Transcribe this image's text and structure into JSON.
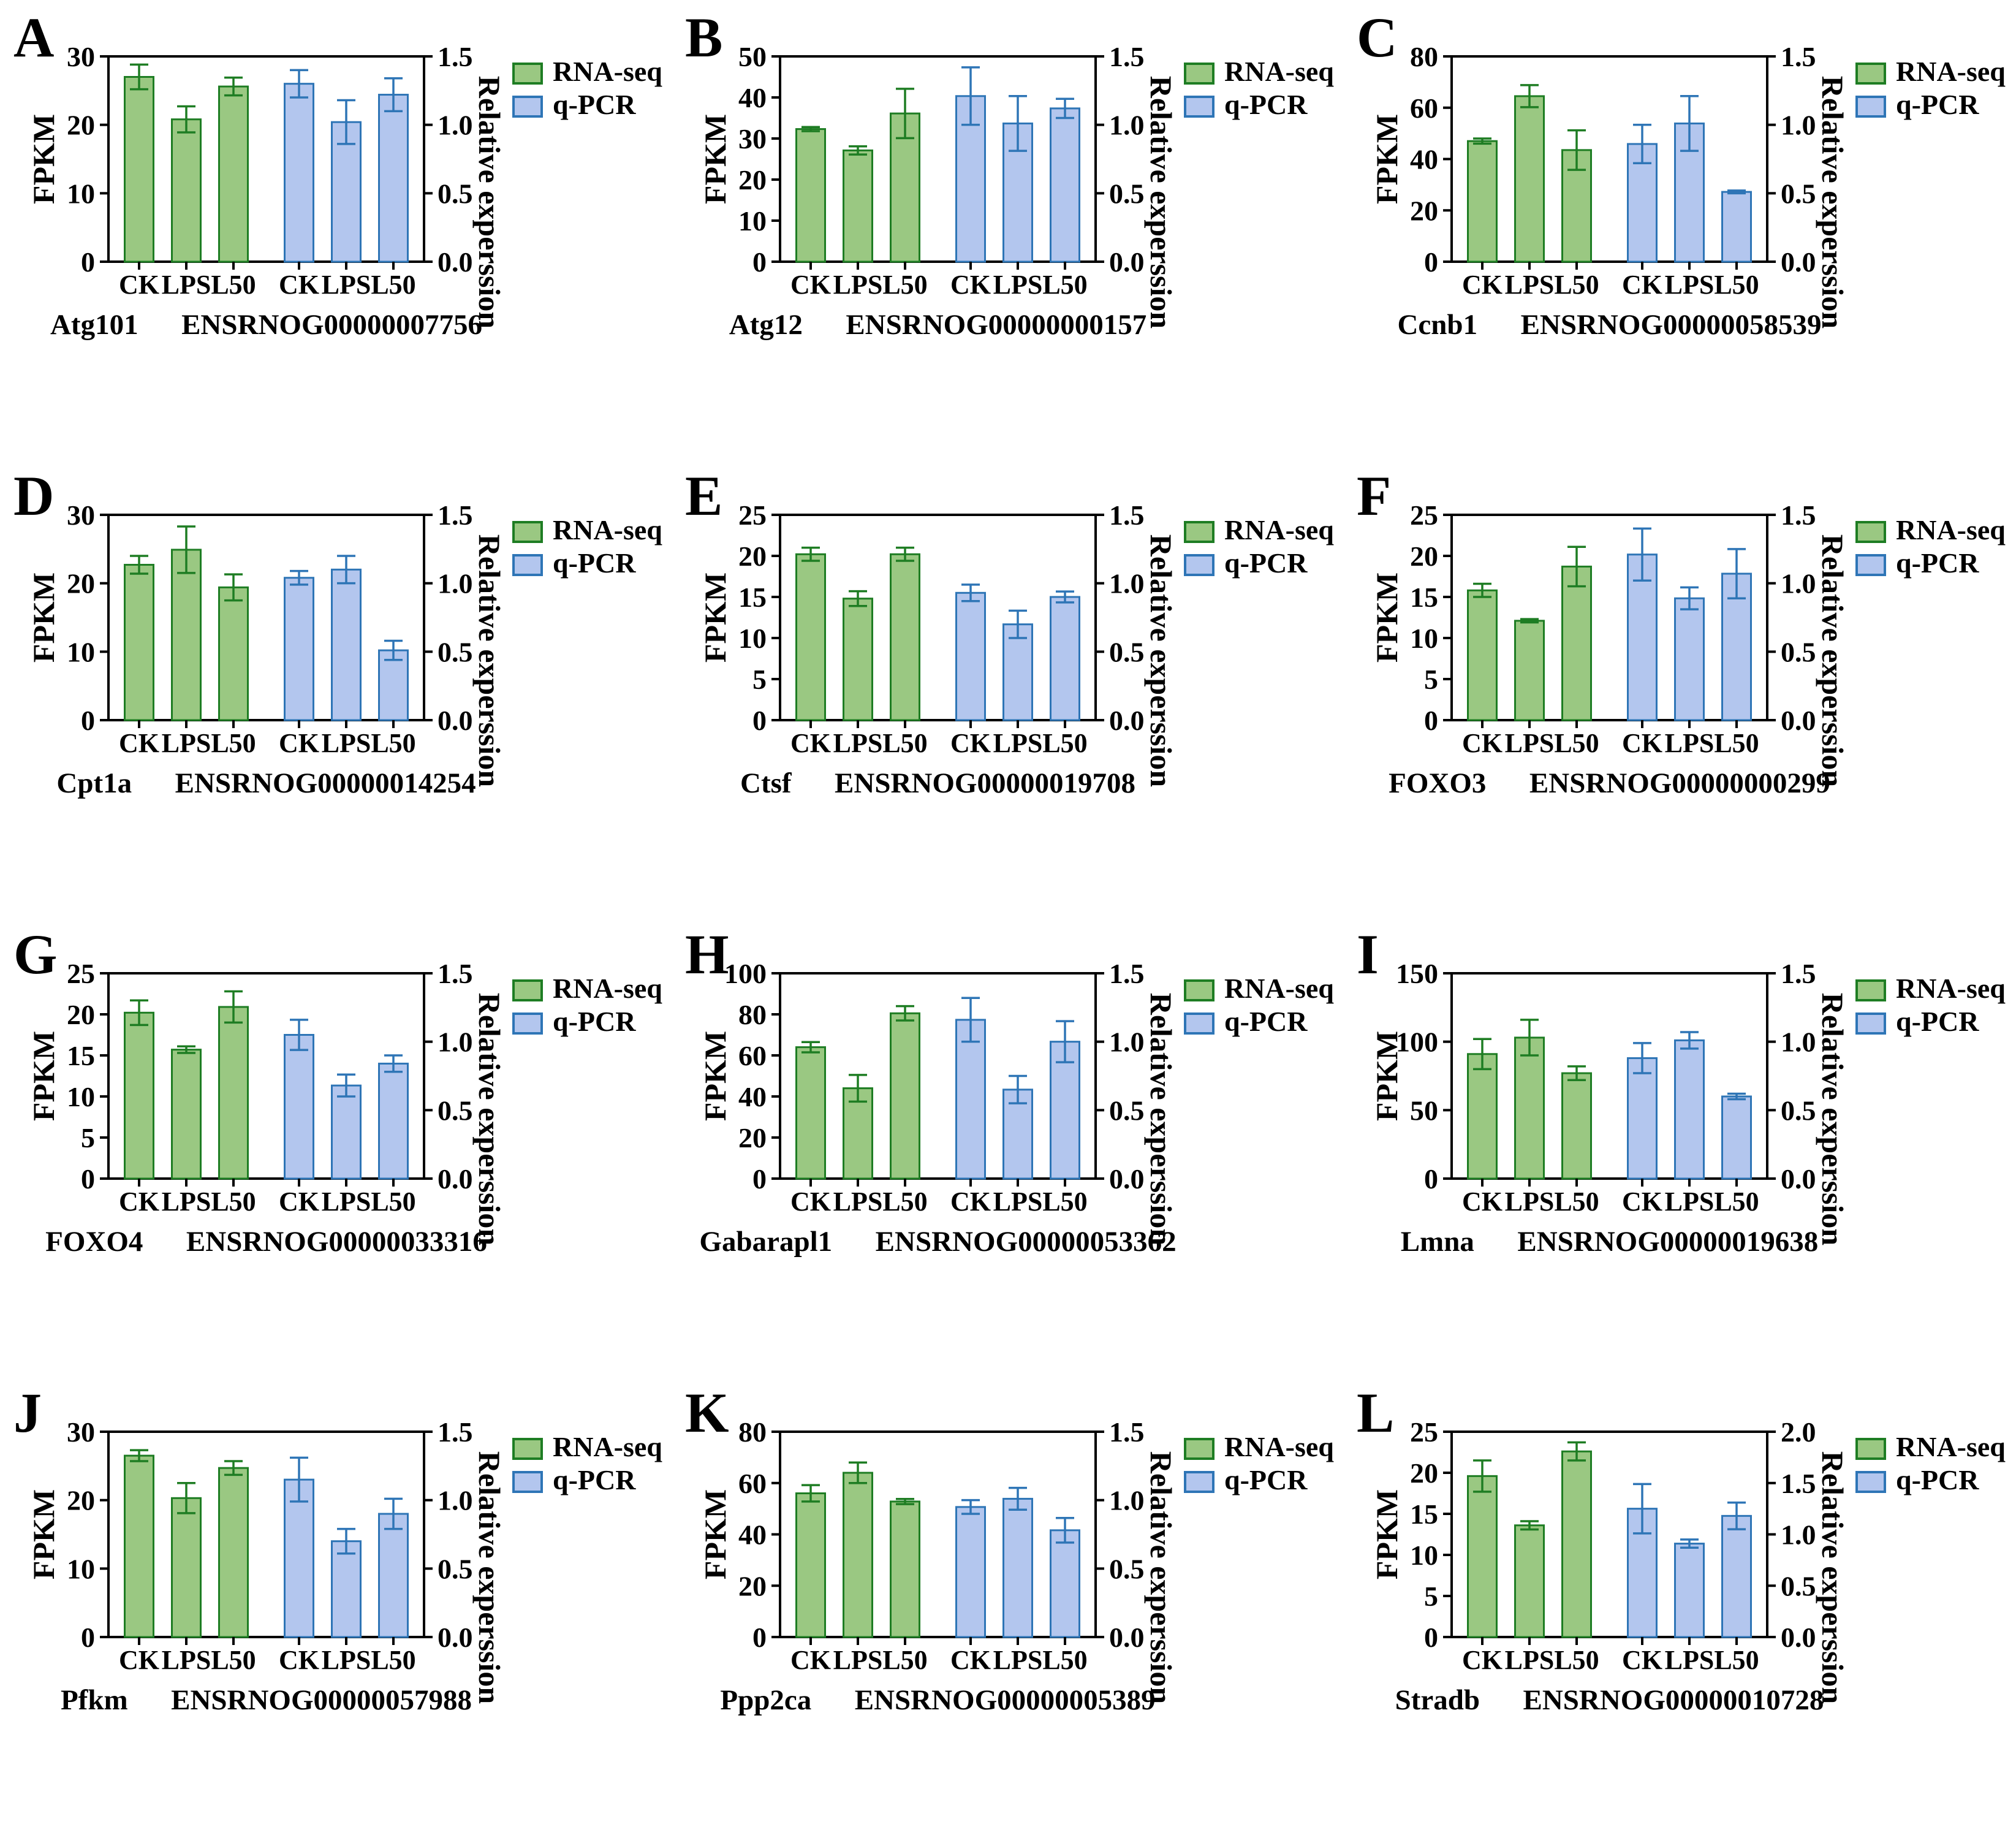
{
  "figure_title": "",
  "legend": {
    "rna_seq_label": "RNA-seq",
    "qpcr_label": "q-PCR"
  },
  "colors": {
    "green_fill": "#9ac882",
    "green_stroke": "#1e7d23",
    "blue_fill": "#b3c6ee",
    "blue_stroke": "#2e75b6",
    "axis": "#000000"
  },
  "chart_data": [
    {
      "type": "bar",
      "letter": "A",
      "gene": "Atg101",
      "gene_id": "ENSRNOG00000007756",
      "categories": [
        "CK",
        "LPS",
        "L50"
      ],
      "left_axis": {
        "label": "FPKM",
        "min": 0,
        "max": 30,
        "ticks": [
          0,
          10,
          20,
          30
        ]
      },
      "right_axis": {
        "label": "Relative experssion",
        "min": 0,
        "max": 1.5,
        "ticks": [
          0,
          0.5,
          1.0,
          1.5
        ]
      },
      "series": [
        {
          "name": "RNA-seq",
          "axis": "left",
          "values": [
            27.0,
            20.8,
            25.6
          ],
          "errors": [
            1.8,
            1.9,
            1.3
          ]
        },
        {
          "name": "q-PCR",
          "axis": "right",
          "values": [
            1.3,
            1.02,
            1.22
          ],
          "errors": [
            0.1,
            0.16,
            0.12
          ]
        }
      ]
    },
    {
      "type": "bar",
      "letter": "B",
      "gene": "Atg12",
      "gene_id": "ENSRNOG00000000157",
      "categories": [
        "CK",
        "LPS",
        "L50"
      ],
      "left_axis": {
        "label": "FPKM",
        "min": 0,
        "max": 50,
        "ticks": [
          0,
          10,
          20,
          30,
          40,
          50
        ]
      },
      "right_axis": {
        "label": "Relative experssion",
        "min": 0,
        "max": 1.5,
        "ticks": [
          0,
          0.5,
          1.0,
          1.5
        ]
      },
      "series": [
        {
          "name": "RNA-seq",
          "axis": "left",
          "values": [
            32.3,
            27.1,
            36.1
          ],
          "errors": [
            0.5,
            1.0,
            6.0
          ]
        },
        {
          "name": "q-PCR",
          "axis": "right",
          "values": [
            1.21,
            1.01,
            1.12
          ],
          "errors": [
            0.21,
            0.2,
            0.07
          ]
        }
      ]
    },
    {
      "type": "bar",
      "letter": "C",
      "gene": "Ccnb1",
      "gene_id": "ENSRNOG00000058539",
      "categories": [
        "CK",
        "LPS",
        "L50"
      ],
      "left_axis": {
        "label": "FPKM",
        "min": 0,
        "max": 80,
        "ticks": [
          0,
          20,
          40,
          60,
          80
        ]
      },
      "right_axis": {
        "label": "Relative experssion",
        "min": 0,
        "max": 1.5,
        "ticks": [
          0,
          0.5,
          1.0,
          1.5
        ]
      },
      "series": [
        {
          "name": "RNA-seq",
          "axis": "left",
          "values": [
            47.0,
            64.5,
            43.5
          ],
          "errors": [
            1.0,
            4.3,
            7.7
          ]
        },
        {
          "name": "q-PCR",
          "axis": "right",
          "values": [
            0.86,
            1.01,
            0.51
          ],
          "errors": [
            0.14,
            0.2,
            0.01
          ]
        }
      ]
    },
    {
      "type": "bar",
      "letter": "D",
      "gene": "Cpt1a",
      "gene_id": "ENSRNOG00000014254",
      "categories": [
        "CK",
        "LPS",
        "L50"
      ],
      "left_axis": {
        "label": "FPKM",
        "min": 0,
        "max": 30,
        "ticks": [
          0,
          10,
          20,
          30
        ]
      },
      "right_axis": {
        "label": "Relative experssion",
        "min": 0,
        "max": 1.5,
        "ticks": [
          0,
          0.5,
          1.0,
          1.5
        ]
      },
      "series": [
        {
          "name": "RNA-seq",
          "axis": "left",
          "values": [
            22.7,
            24.9,
            19.4
          ],
          "errors": [
            1.3,
            3.4,
            1.9
          ]
        },
        {
          "name": "q-PCR",
          "axis": "right",
          "values": [
            1.04,
            1.1,
            0.51
          ],
          "errors": [
            0.05,
            0.1,
            0.07
          ]
        }
      ]
    },
    {
      "type": "bar",
      "letter": "E",
      "gene": "Ctsf",
      "gene_id": "ENSRNOG00000019708",
      "categories": [
        "CK",
        "LPS",
        "L50"
      ],
      "left_axis": {
        "label": "FPKM",
        "min": 0,
        "max": 25,
        "ticks": [
          0,
          5,
          10,
          15,
          20,
          25
        ]
      },
      "right_axis": {
        "label": "Relative experssion",
        "min": 0,
        "max": 1.5,
        "ticks": [
          0,
          0.5,
          1.0,
          1.5
        ]
      },
      "series": [
        {
          "name": "RNA-seq",
          "axis": "left",
          "values": [
            20.2,
            14.8,
            20.2
          ],
          "errors": [
            0.8,
            0.9,
            0.8
          ]
        },
        {
          "name": "q-PCR",
          "axis": "right",
          "values": [
            0.93,
            0.7,
            0.9
          ],
          "errors": [
            0.06,
            0.1,
            0.04
          ]
        }
      ]
    },
    {
      "type": "bar",
      "letter": "F",
      "gene": "FOXO3",
      "gene_id": "ENSRNOG00000000299",
      "categories": [
        "CK",
        "LPS",
        "L50"
      ],
      "left_axis": {
        "label": "FPKM",
        "min": 0,
        "max": 25,
        "ticks": [
          0,
          5,
          10,
          15,
          20,
          25
        ]
      },
      "right_axis": {
        "label": "Relative experssion",
        "min": 0,
        "max": 1.5,
        "ticks": [
          0,
          0.5,
          1.0,
          1.5
        ]
      },
      "series": [
        {
          "name": "RNA-seq",
          "axis": "left",
          "values": [
            15.8,
            12.1,
            18.7
          ],
          "errors": [
            0.8,
            0.2,
            2.4
          ]
        },
        {
          "name": "q-PCR",
          "axis": "right",
          "values": [
            1.21,
            0.89,
            1.07
          ],
          "errors": [
            0.19,
            0.08,
            0.18
          ]
        }
      ]
    },
    {
      "type": "bar",
      "letter": "G",
      "gene": "FOXO4",
      "gene_id": "ENSRNOG00000033316",
      "categories": [
        "CK",
        "LPS",
        "L50"
      ],
      "left_axis": {
        "label": "FPKM",
        "min": 0,
        "max": 25,
        "ticks": [
          0,
          5,
          10,
          15,
          20,
          25
        ]
      },
      "right_axis": {
        "label": "Relative experssion",
        "min": 0,
        "max": 1.5,
        "ticks": [
          0,
          0.5,
          1.0,
          1.5
        ]
      },
      "series": [
        {
          "name": "RNA-seq",
          "axis": "left",
          "values": [
            20.2,
            15.7,
            20.9
          ],
          "errors": [
            1.5,
            0.4,
            1.9
          ]
        },
        {
          "name": "q-PCR",
          "axis": "right",
          "values": [
            1.05,
            0.68,
            0.84
          ],
          "errors": [
            0.11,
            0.08,
            0.06
          ]
        }
      ]
    },
    {
      "type": "bar",
      "letter": "H",
      "gene": "Gabarapl1",
      "gene_id": "ENSRNOG00000053362",
      "categories": [
        "CK",
        "LPS",
        "L50"
      ],
      "left_axis": {
        "label": "FPKM",
        "min": 0,
        "max": 100,
        "ticks": [
          0,
          20,
          40,
          60,
          80,
          100
        ]
      },
      "right_axis": {
        "label": "Relative experssion",
        "min": 0,
        "max": 1.5,
        "ticks": [
          0,
          0.5,
          1.0,
          1.5
        ]
      },
      "series": [
        {
          "name": "RNA-seq",
          "axis": "left",
          "values": [
            64.0,
            44.0,
            80.5
          ],
          "errors": [
            2.5,
            6.5,
            3.5
          ]
        },
        {
          "name": "q-PCR",
          "axis": "right",
          "values": [
            1.16,
            0.65,
            1.0
          ],
          "errors": [
            0.16,
            0.1,
            0.15
          ]
        }
      ]
    },
    {
      "type": "bar",
      "letter": "I",
      "gene": "Lmna",
      "gene_id": "ENSRNOG00000019638",
      "categories": [
        "CK",
        "LPS",
        "L50"
      ],
      "left_axis": {
        "label": "FPKM",
        "min": 0,
        "max": 150,
        "ticks": [
          0,
          50,
          100,
          150
        ]
      },
      "right_axis": {
        "label": "Relative experssion",
        "min": 0,
        "max": 1.5,
        "ticks": [
          0,
          0.5,
          1.0,
          1.5
        ]
      },
      "series": [
        {
          "name": "RNA-seq",
          "axis": "left",
          "values": [
            91.0,
            103.0,
            77.0
          ],
          "errors": [
            11.0,
            13.0,
            5.0
          ]
        },
        {
          "name": "q-PCR",
          "axis": "right",
          "values": [
            0.88,
            1.01,
            0.6
          ],
          "errors": [
            0.11,
            0.06,
            0.02
          ]
        }
      ]
    },
    {
      "type": "bar",
      "letter": "J",
      "gene": "Pfkm",
      "gene_id": "ENSRNOG00000057988",
      "categories": [
        "CK",
        "LPS",
        "L50"
      ],
      "left_axis": {
        "label": "FPKM",
        "min": 0,
        "max": 30,
        "ticks": [
          0,
          10,
          20,
          30
        ]
      },
      "right_axis": {
        "label": "Relative experssion",
        "min": 0,
        "max": 1.5,
        "ticks": [
          0,
          0.5,
          1.0,
          1.5
        ]
      },
      "series": [
        {
          "name": "RNA-seq",
          "axis": "left",
          "values": [
            26.5,
            20.3,
            24.7
          ],
          "errors": [
            0.8,
            2.2,
            1.0
          ]
        },
        {
          "name": "q-PCR",
          "axis": "right",
          "values": [
            1.15,
            0.7,
            0.9
          ],
          "errors": [
            0.16,
            0.09,
            0.11
          ]
        }
      ]
    },
    {
      "type": "bar",
      "letter": "K",
      "gene": "Ppp2ca",
      "gene_id": "ENSRNOG00000005389",
      "categories": [
        "CK",
        "LPS",
        "L50"
      ],
      "left_axis": {
        "label": "FPKM",
        "min": 0,
        "max": 80,
        "ticks": [
          0,
          20,
          40,
          60,
          80
        ]
      },
      "right_axis": {
        "label": "Relative experssion",
        "min": 0,
        "max": 1.5,
        "ticks": [
          0,
          0.5,
          1.0,
          1.5
        ]
      },
      "series": [
        {
          "name": "RNA-seq",
          "axis": "left",
          "values": [
            56.0,
            64.0,
            52.8
          ],
          "errors": [
            3.2,
            4.0,
            1.0
          ]
        },
        {
          "name": "q-PCR",
          "axis": "right",
          "values": [
            0.95,
            1.01,
            0.78
          ],
          "errors": [
            0.05,
            0.08,
            0.09
          ]
        }
      ]
    },
    {
      "type": "bar",
      "letter": "L",
      "gene": "Stradb",
      "gene_id": "ENSRNOG00000010728",
      "categories": [
        "CK",
        "LPS",
        "L50"
      ],
      "left_axis": {
        "label": "FPKM",
        "min": 0,
        "max": 25,
        "ticks": [
          0,
          5,
          10,
          15,
          20,
          25
        ]
      },
      "right_axis": {
        "label": "Relative experssion",
        "min": 0,
        "max": 2.0,
        "ticks": [
          0,
          0.5,
          1.0,
          1.5,
          2.0
        ]
      },
      "series": [
        {
          "name": "RNA-seq",
          "axis": "left",
          "values": [
            19.6,
            13.6,
            22.6
          ],
          "errors": [
            1.9,
            0.5,
            1.1
          ]
        },
        {
          "name": "q-PCR",
          "axis": "right",
          "values": [
            1.25,
            0.91,
            1.18
          ],
          "errors": [
            0.24,
            0.04,
            0.13
          ]
        }
      ]
    }
  ]
}
